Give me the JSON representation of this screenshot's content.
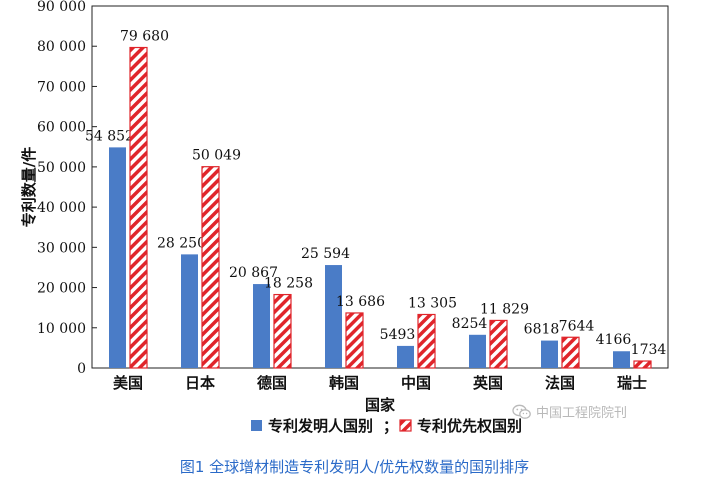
{
  "chart_data": {
    "type": "bar",
    "title": "",
    "xlabel": "国家",
    "ylabel": "专利数量/件",
    "ylim": [
      0,
      90000
    ],
    "yticks": [
      0,
      10000,
      20000,
      30000,
      40000,
      50000,
      60000,
      70000,
      80000,
      90000
    ],
    "ytick_labels": [
      "0",
      "10 000",
      "20 000",
      "30 000",
      "40 000",
      "50 000",
      "60 000",
      "70 000",
      "80 000",
      "90 000"
    ],
    "categories": [
      "美国",
      "日本",
      "德国",
      "韩国",
      "中国",
      "英国",
      "法国",
      "瑞士"
    ],
    "series": [
      {
        "name": "专利发明人国别",
        "values": [
          54852,
          28250,
          20867,
          25594,
          5493,
          8254,
          6818,
          4166
        ],
        "labels": [
          "54 852",
          "28 250",
          "20 867",
          "25 594",
          "5493",
          "8254",
          "6818",
          "4166"
        ],
        "color": "#4a7cc7",
        "pattern": "solid"
      },
      {
        "name": "专利优先权国别",
        "values": [
          79680,
          50049,
          18258,
          13686,
          13305,
          11829,
          7644,
          1734
        ],
        "labels": [
          "79 680",
          "50 049",
          "18 258",
          "13 686",
          "13 305",
          "11 829",
          "7644",
          "1734"
        ],
        "color": "#e0252b",
        "pattern": "hatched"
      }
    ],
    "legend_separator": "；",
    "legend_position": "bottom",
    "grid": false
  },
  "caption": "图1 全球增材制造专利发明人/优先权数量的国别排序",
  "watermark": {
    "text": "中国工程院院刊",
    "icon": "wechat-icon"
  }
}
